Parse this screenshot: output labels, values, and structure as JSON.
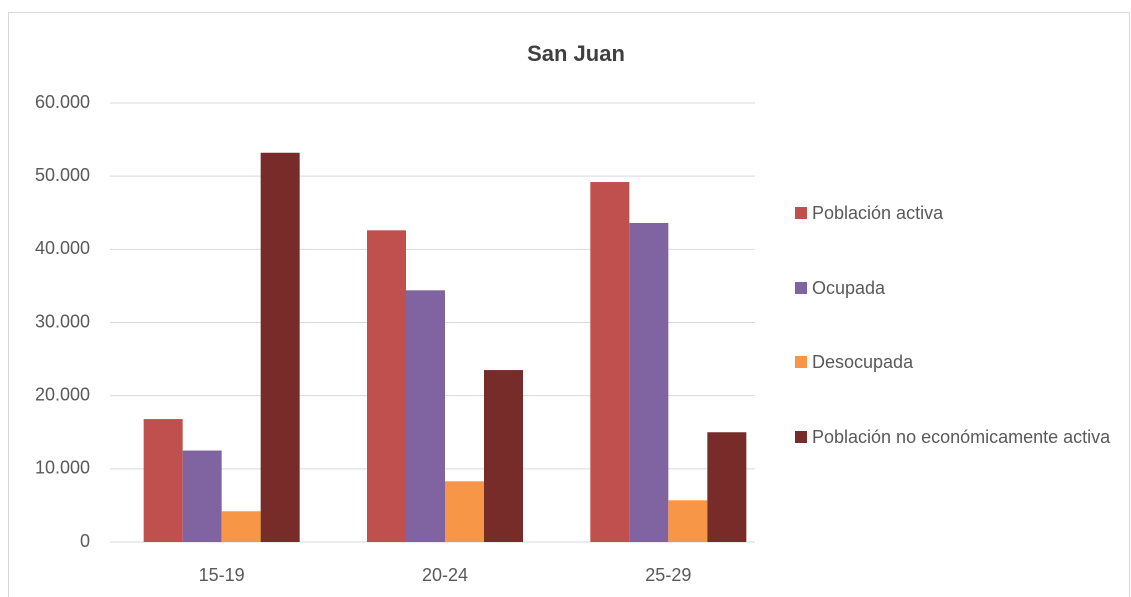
{
  "chart_data": {
    "type": "bar",
    "title": "San Juan",
    "categories": [
      "15-19",
      "20-24",
      "25-29"
    ],
    "series": [
      {
        "name": "Población activa",
        "color": "#c0504d",
        "values": [
          16800,
          42600,
          49200
        ]
      },
      {
        "name": "Ocupada",
        "color": "#8064a2",
        "values": [
          12500,
          34400,
          43600
        ]
      },
      {
        "name": "Desocupada",
        "color": "#f79646",
        "values": [
          4200,
          8300,
          5700
        ]
      },
      {
        "name": "Población no económicamente activa",
        "color": "#772c2a",
        "values": [
          53200,
          23500,
          15000
        ]
      }
    ],
    "ylim": [
      0,
      60000
    ],
    "yticks": [
      0,
      {
        "value": 10000,
        "label": "10.000"
      },
      {
        "value": 20000,
        "label": "20.000"
      },
      {
        "value": 30000,
        "label": "30.000"
      },
      {
        "value": 40000,
        "label": "40.000"
      },
      {
        "value": 50000,
        "label": "50.000"
      },
      {
        "value": 60000,
        "label": "60.000"
      }
    ],
    "grid": true,
    "legend": "right"
  }
}
